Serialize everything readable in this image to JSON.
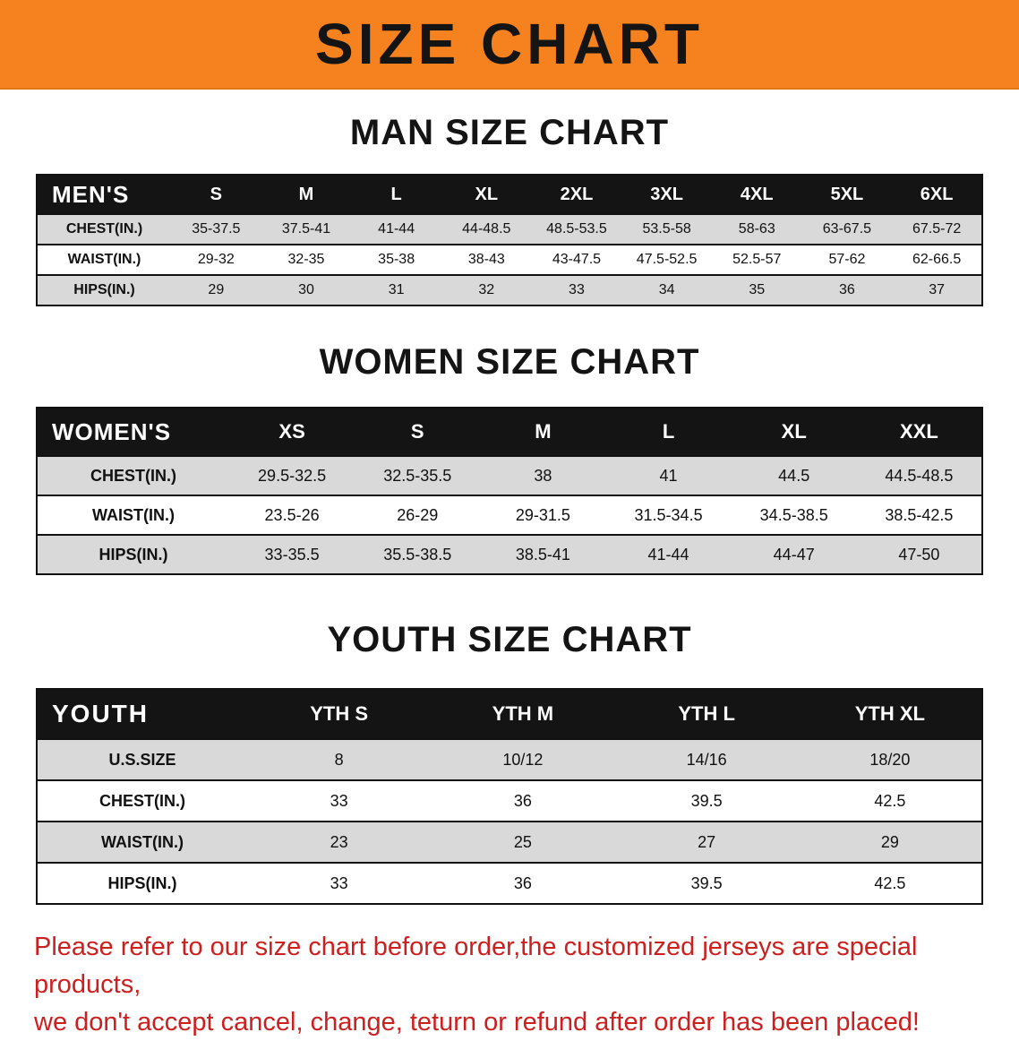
{
  "banner": {
    "title": "SIZE CHART"
  },
  "colors": {
    "banner_bg": "#f5821f",
    "table_header_bg": "#141414",
    "row_alt_bg": "#d9d9d9",
    "footer_text": "#cc2020"
  },
  "man_section": {
    "heading": "MAN SIZE CHART",
    "table": {
      "corner": "MEN'S",
      "columns": [
        "S",
        "M",
        "L",
        "XL",
        "2XL",
        "3XL",
        "4XL",
        "5XL",
        "6XL"
      ],
      "rows": [
        {
          "label": "CHEST(IN.)",
          "values": [
            "35-37.5",
            "37.5-41",
            "41-44",
            "44-48.5",
            "48.5-53.5",
            "53.5-58",
            "58-63",
            "63-67.5",
            "67.5-72"
          ]
        },
        {
          "label": "WAIST(IN.)",
          "values": [
            "29-32",
            "32-35",
            "35-38",
            "38-43",
            "43-47.5",
            "47.5-52.5",
            "52.5-57",
            "57-62",
            "62-66.5"
          ]
        },
        {
          "label": "HIPS(IN.)",
          "values": [
            "29",
            "30",
            "31",
            "32",
            "33",
            "34",
            "35",
            "36",
            "37"
          ]
        }
      ]
    }
  },
  "women_section": {
    "heading": "WOMEN SIZE CHART",
    "table": {
      "corner": "WOMEN'S",
      "columns": [
        "XS",
        "S",
        "M",
        "L",
        "XL",
        "XXL"
      ],
      "rows": [
        {
          "label": "CHEST(IN.)",
          "values": [
            "29.5-32.5",
            "32.5-35.5",
            "38",
            "41",
            "44.5",
            "44.5-48.5"
          ]
        },
        {
          "label": "WAIST(IN.)",
          "values": [
            "23.5-26",
            "26-29",
            "29-31.5",
            "31.5-34.5",
            "34.5-38.5",
            "38.5-42.5"
          ]
        },
        {
          "label": "HIPS(IN.)",
          "values": [
            "33-35.5",
            "35.5-38.5",
            "38.5-41",
            "41-44",
            "44-47",
            "47-50"
          ]
        }
      ]
    }
  },
  "youth_section": {
    "heading": "YOUTH SIZE CHART",
    "table": {
      "corner": "YOUTH",
      "columns": [
        "YTH S",
        "YTH M",
        "YTH L",
        "YTH XL"
      ],
      "rows": [
        {
          "label": "U.S.SIZE",
          "values": [
            "8",
            "10/12",
            "14/16",
            "18/20"
          ]
        },
        {
          "label": "CHEST(IN.)",
          "values": [
            "33",
            "36",
            "39.5",
            "42.5"
          ]
        },
        {
          "label": "WAIST(IN.)",
          "values": [
            "23",
            "25",
            "27",
            "29"
          ]
        },
        {
          "label": "HIPS(IN.)",
          "values": [
            "33",
            "36",
            "39.5",
            "42.5"
          ]
        }
      ]
    }
  },
  "footer": {
    "line1": "Please refer to our size chart before order,the customized jerseys are special products,",
    "line2": "we don't accept cancel, change, teturn or refund after order has been placed!"
  }
}
